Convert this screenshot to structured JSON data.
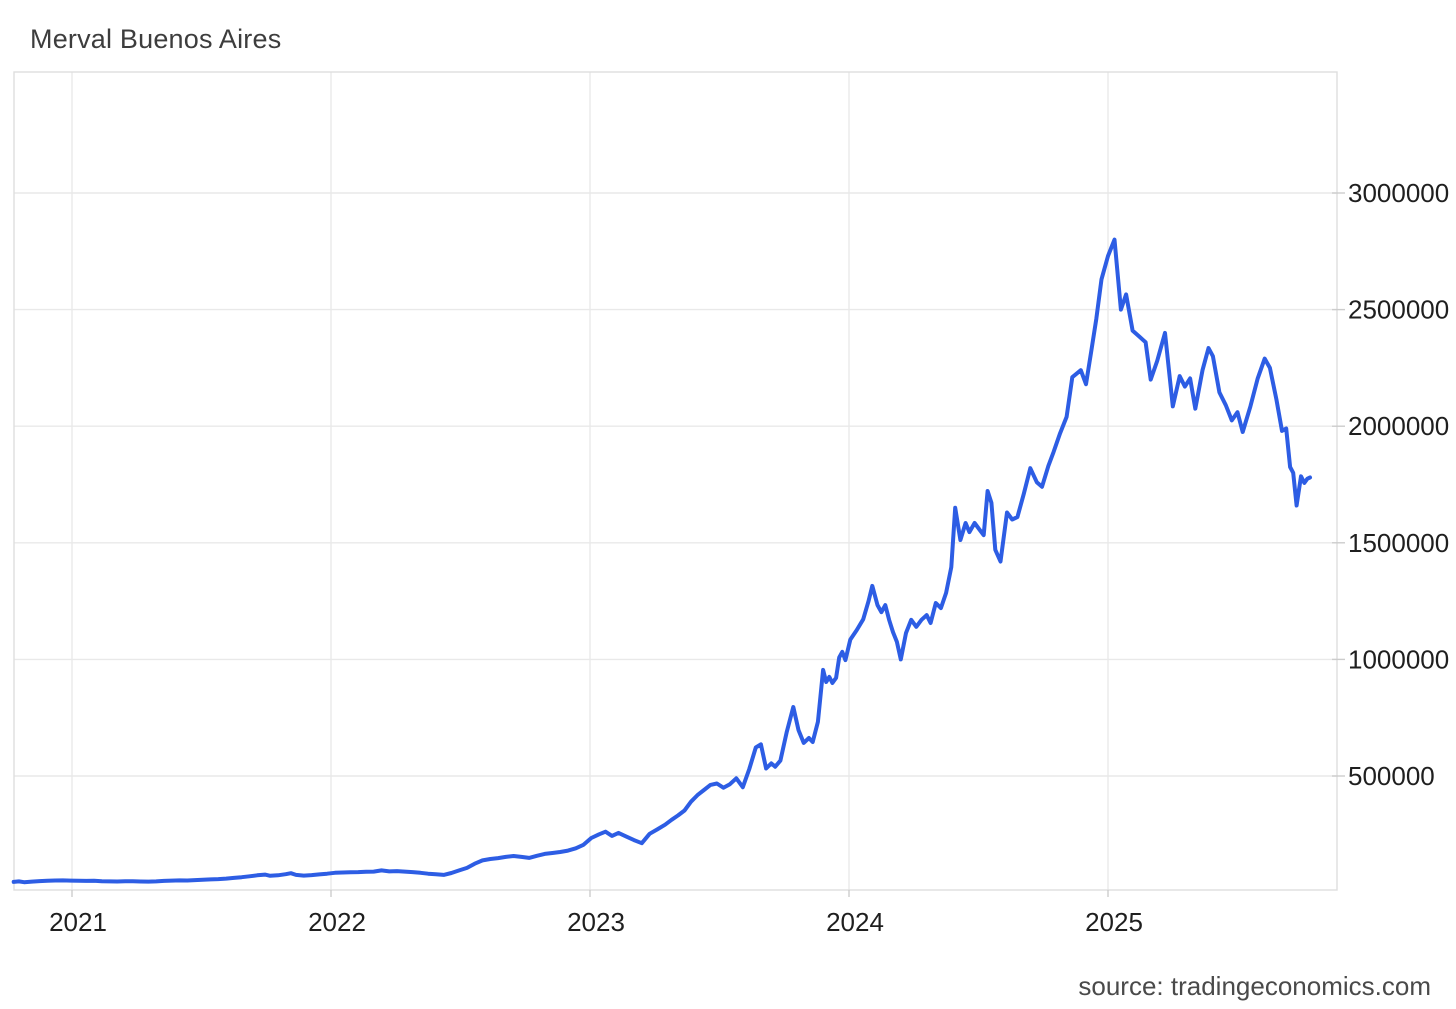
{
  "page": {
    "title": "Merval Buenos Aires",
    "source_caption": "source: tradingeconomics.com"
  },
  "chart_data": {
    "type": "line",
    "title": "Merval Buenos Aires",
    "subtitle": "",
    "xlabel": "",
    "ylabel": "",
    "legend": "none",
    "grid": true,
    "source": "source: tradingeconomics.com",
    "x_axis": {
      "range_years": [
        2020.77,
        2025.88
      ],
      "ticks": [
        {
          "year": 2021,
          "label": "2021"
        },
        {
          "year": 2022,
          "label": "2022"
        },
        {
          "year": 2023,
          "label": "2023"
        },
        {
          "year": 2024,
          "label": "2024"
        },
        {
          "year": 2025,
          "label": "2025"
        }
      ]
    },
    "y_axis": {
      "side": "right",
      "range": [
        0,
        3520000
      ],
      "ticks": [
        {
          "value": 500000,
          "label": "500000"
        },
        {
          "value": 1000000,
          "label": "1000000"
        },
        {
          "value": 1500000,
          "label": "1500000"
        },
        {
          "value": 2000000,
          "label": "2000000"
        },
        {
          "value": 2500000,
          "label": "2500000"
        },
        {
          "value": 3000000,
          "label": "3000000"
        }
      ]
    },
    "colors": {
      "line": "#2d5de4",
      "grid": "#e9e9e9",
      "frame": "#dedede",
      "tick": "#cccccc",
      "axis_text": "#1f1f1f",
      "title_text": "#3d3d3d",
      "source_text": "#4a4a4a",
      "background": "#ffffff"
    },
    "series": [
      {
        "name": "Merval Buenos Aires",
        "points": [
          [
            2020.775,
            46000
          ],
          [
            2020.795,
            48000
          ],
          [
            2020.815,
            44500
          ],
          [
            2020.845,
            47000
          ],
          [
            2020.875,
            49500
          ],
          [
            2020.905,
            51000
          ],
          [
            2020.935,
            52000
          ],
          [
            2020.965,
            52500
          ],
          [
            2020.995,
            51500
          ],
          [
            2021.025,
            50500
          ],
          [
            2021.055,
            50000
          ],
          [
            2021.085,
            51000
          ],
          [
            2021.115,
            49000
          ],
          [
            2021.145,
            48000
          ],
          [
            2021.175,
            47500
          ],
          [
            2021.205,
            49000
          ],
          [
            2021.235,
            48500
          ],
          [
            2021.265,
            47500
          ],
          [
            2021.295,
            47000
          ],
          [
            2021.325,
            48000
          ],
          [
            2021.355,
            50000
          ],
          [
            2021.385,
            51500
          ],
          [
            2021.415,
            52500
          ],
          [
            2021.445,
            52000
          ],
          [
            2021.475,
            53500
          ],
          [
            2021.505,
            55000
          ],
          [
            2021.535,
            56500
          ],
          [
            2021.565,
            58000
          ],
          [
            2021.595,
            60000
          ],
          [
            2021.625,
            63000
          ],
          [
            2021.655,
            66000
          ],
          [
            2021.685,
            70000
          ],
          [
            2021.715,
            74000
          ],
          [
            2021.745,
            77000
          ],
          [
            2021.765,
            72000
          ],
          [
            2021.795,
            74000
          ],
          [
            2021.825,
            79000
          ],
          [
            2021.845,
            83000
          ],
          [
            2021.865,
            76000
          ],
          [
            2021.895,
            73000
          ],
          [
            2021.925,
            75000
          ],
          [
            2021.955,
            78000
          ],
          [
            2021.985,
            81000
          ],
          [
            2022.015,
            85000
          ],
          [
            2022.045,
            86000
          ],
          [
            2022.075,
            87500
          ],
          [
            2022.105,
            88000
          ],
          [
            2022.135,
            89000
          ],
          [
            2022.165,
            90000
          ],
          [
            2022.195,
            95000
          ],
          [
            2022.225,
            91000
          ],
          [
            2022.255,
            92000
          ],
          [
            2022.285,
            90000
          ],
          [
            2022.315,
            88000
          ],
          [
            2022.345,
            85000
          ],
          [
            2022.375,
            81000
          ],
          [
            2022.405,
            79000
          ],
          [
            2022.435,
            76000
          ],
          [
            2022.465,
            84000
          ],
          [
            2022.495,
            95000
          ],
          [
            2022.525,
            106000
          ],
          [
            2022.555,
            124000
          ],
          [
            2022.585,
            138000
          ],
          [
            2022.615,
            144000
          ],
          [
            2022.645,
            148000
          ],
          [
            2022.675,
            153000
          ],
          [
            2022.705,
            157000
          ],
          [
            2022.735,
            153000
          ],
          [
            2022.765,
            149000
          ],
          [
            2022.795,
            158000
          ],
          [
            2022.825,
            166000
          ],
          [
            2022.855,
            170000
          ],
          [
            2022.885,
            174000
          ],
          [
            2022.915,
            180000
          ],
          [
            2022.945,
            190000
          ],
          [
            2022.975,
            205000
          ],
          [
            2023.005,
            234000
          ],
          [
            2023.035,
            250000
          ],
          [
            2023.06,
            261000
          ],
          [
            2023.085,
            243000
          ],
          [
            2023.11,
            256000
          ],
          [
            2023.14,
            240000
          ],
          [
            2023.17,
            225000
          ],
          [
            2023.2,
            212000
          ],
          [
            2023.23,
            252000
          ],
          [
            2023.26,
            271000
          ],
          [
            2023.29,
            291000
          ],
          [
            2023.315,
            312000
          ],
          [
            2023.34,
            331000
          ],
          [
            2023.365,
            352000
          ],
          [
            2023.39,
            390000
          ],
          [
            2023.415,
            418000
          ],
          [
            2023.44,
            440000
          ],
          [
            2023.465,
            462000
          ],
          [
            2023.49,
            468000
          ],
          [
            2023.515,
            450000
          ],
          [
            2023.54,
            465000
          ],
          [
            2023.565,
            490000
          ],
          [
            2023.59,
            452000
          ],
          [
            2023.615,
            530000
          ],
          [
            2023.64,
            622000
          ],
          [
            2023.66,
            636000
          ],
          [
            2023.68,
            532000
          ],
          [
            2023.7,
            554000
          ],
          [
            2023.715,
            540000
          ],
          [
            2023.735,
            566000
          ],
          [
            2023.76,
            690000
          ],
          [
            2023.785,
            796000
          ],
          [
            2023.805,
            697000
          ],
          [
            2023.825,
            642000
          ],
          [
            2023.845,
            663000
          ],
          [
            2023.86,
            646000
          ],
          [
            2023.88,
            732000
          ],
          [
            2023.9,
            955000
          ],
          [
            2023.912,
            903000
          ],
          [
            2023.924,
            925000
          ],
          [
            2023.936,
            899000
          ],
          [
            2023.95,
            921000
          ],
          [
            2023.962,
            1008000
          ],
          [
            2023.974,
            1032000
          ],
          [
            2023.986,
            997000
          ],
          [
            2024.005,
            1085000
          ],
          [
            2024.03,
            1126000
          ],
          [
            2024.055,
            1172000
          ],
          [
            2024.075,
            1248000
          ],
          [
            2024.09,
            1315000
          ],
          [
            2024.11,
            1233000
          ],
          [
            2024.125,
            1203000
          ],
          [
            2024.14,
            1233000
          ],
          [
            2024.155,
            1170000
          ],
          [
            2024.17,
            1117000
          ],
          [
            2024.185,
            1075000
          ],
          [
            2024.2,
            1000000
          ],
          [
            2024.22,
            1113000
          ],
          [
            2024.24,
            1170000
          ],
          [
            2024.26,
            1140000
          ],
          [
            2024.28,
            1170000
          ],
          [
            2024.3,
            1190000
          ],
          [
            2024.315,
            1156000
          ],
          [
            2024.335,
            1242000
          ],
          [
            2024.355,
            1220000
          ],
          [
            2024.375,
            1285000
          ],
          [
            2024.395,
            1396000
          ],
          [
            2024.41,
            1650000
          ],
          [
            2024.43,
            1512000
          ],
          [
            2024.45,
            1585000
          ],
          [
            2024.465,
            1546000
          ],
          [
            2024.485,
            1585000
          ],
          [
            2024.505,
            1555000
          ],
          [
            2024.52,
            1533000
          ],
          [
            2024.535,
            1722000
          ],
          [
            2024.55,
            1672000
          ],
          [
            2024.565,
            1470000
          ],
          [
            2024.585,
            1420000
          ],
          [
            2024.61,
            1630000
          ],
          [
            2024.63,
            1600000
          ],
          [
            2024.65,
            1610000
          ],
          [
            2024.675,
            1710000
          ],
          [
            2024.7,
            1820000
          ],
          [
            2024.725,
            1760000
          ],
          [
            2024.745,
            1740000
          ],
          [
            2024.77,
            1830000
          ],
          [
            2024.79,
            1890000
          ],
          [
            2024.815,
            1970000
          ],
          [
            2024.84,
            2040000
          ],
          [
            2024.862,
            2210000
          ],
          [
            2024.895,
            2240000
          ],
          [
            2024.915,
            2180000
          ],
          [
            2024.935,
            2320000
          ],
          [
            2024.955,
            2460000
          ],
          [
            2024.975,
            2630000
          ],
          [
            2025.0,
            2730000
          ],
          [
            2025.025,
            2800000
          ],
          [
            2025.05,
            2500000
          ],
          [
            2025.07,
            2565000
          ],
          [
            2025.095,
            2410000
          ],
          [
            2025.12,
            2385000
          ],
          [
            2025.145,
            2360000
          ],
          [
            2025.165,
            2200000
          ],
          [
            2025.19,
            2280000
          ],
          [
            2025.22,
            2400000
          ],
          [
            2025.25,
            2085000
          ],
          [
            2025.277,
            2215000
          ],
          [
            2025.297,
            2170000
          ],
          [
            2025.317,
            2205000
          ],
          [
            2025.337,
            2075000
          ],
          [
            2025.365,
            2240000
          ],
          [
            2025.388,
            2335000
          ],
          [
            2025.405,
            2300000
          ],
          [
            2025.43,
            2145000
          ],
          [
            2025.455,
            2090000
          ],
          [
            2025.478,
            2025000
          ],
          [
            2025.5,
            2060000
          ],
          [
            2025.52,
            1975000
          ],
          [
            2025.55,
            2085000
          ],
          [
            2025.578,
            2205000
          ],
          [
            2025.605,
            2290000
          ],
          [
            2025.625,
            2250000
          ],
          [
            2025.65,
            2115000
          ],
          [
            2025.672,
            1980000
          ],
          [
            2025.688,
            1990000
          ],
          [
            2025.703,
            1825000
          ],
          [
            2025.715,
            1800000
          ],
          [
            2025.728,
            1660000
          ],
          [
            2025.745,
            1785000
          ],
          [
            2025.758,
            1757000
          ],
          [
            2025.77,
            1775000
          ],
          [
            2025.78,
            1780000
          ]
        ]
      }
    ]
  }
}
